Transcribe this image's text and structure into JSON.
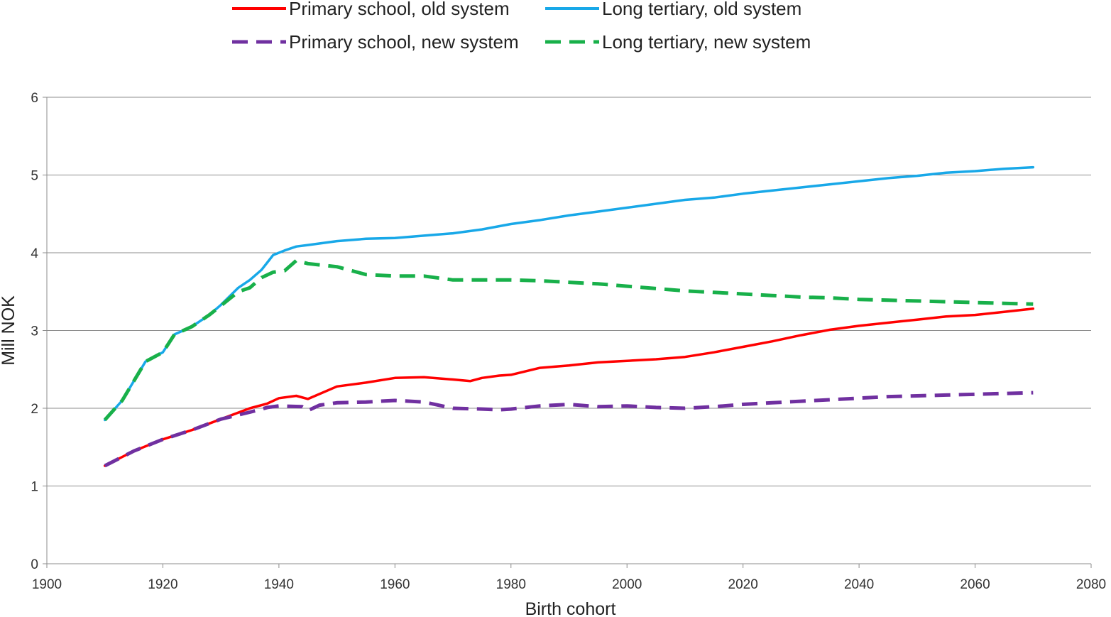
{
  "chart_data": {
    "type": "line",
    "title": "",
    "xlabel": "Birth cohort",
    "ylabel": "Mill NOK",
    "xlim": [
      1900,
      2080
    ],
    "ylim": [
      0,
      6
    ],
    "x_ticks": [
      "1900",
      "1920",
      "1940",
      "1960",
      "1980",
      "2000",
      "2020",
      "2040",
      "2060",
      "2080"
    ],
    "y_ticks": [
      "0",
      "1",
      "2",
      "3",
      "4",
      "5",
      "6"
    ],
    "grid": "horizontal",
    "legend_position": "top",
    "series": [
      {
        "name": "Primary school, old system",
        "color": "#ff0000",
        "dash": "solid",
        "points": [
          [
            1910,
            1.26
          ],
          [
            1915,
            1.45
          ],
          [
            1920,
            1.6
          ],
          [
            1925,
            1.72
          ],
          [
            1930,
            1.86
          ],
          [
            1935,
            2.0
          ],
          [
            1938,
            2.06
          ],
          [
            1940,
            2.13
          ],
          [
            1943,
            2.16
          ],
          [
            1945,
            2.12
          ],
          [
            1950,
            2.28
          ],
          [
            1955,
            2.33
          ],
          [
            1960,
            2.39
          ],
          [
            1965,
            2.4
          ],
          [
            1970,
            2.37
          ],
          [
            1973,
            2.35
          ],
          [
            1975,
            2.39
          ],
          [
            1978,
            2.42
          ],
          [
            1980,
            2.43
          ],
          [
            1985,
            2.52
          ],
          [
            1990,
            2.55
          ],
          [
            1995,
            2.59
          ],
          [
            2000,
            2.61
          ],
          [
            2005,
            2.63
          ],
          [
            2010,
            2.66
          ],
          [
            2015,
            2.72
          ],
          [
            2020,
            2.79
          ],
          [
            2025,
            2.86
          ],
          [
            2030,
            2.94
          ],
          [
            2035,
            3.01
          ],
          [
            2040,
            3.06
          ],
          [
            2045,
            3.1
          ],
          [
            2050,
            3.14
          ],
          [
            2055,
            3.18
          ],
          [
            2060,
            3.2
          ],
          [
            2065,
            3.24
          ],
          [
            2070,
            3.28
          ]
        ]
      },
      {
        "name": "Long tertiary, old system",
        "color": "#18a8e8",
        "dash": "solid",
        "points": [
          [
            1910,
            1.85
          ],
          [
            1913,
            2.1
          ],
          [
            1917,
            2.6
          ],
          [
            1920,
            2.72
          ],
          [
            1922,
            2.95
          ],
          [
            1925,
            3.05
          ],
          [
            1928,
            3.2
          ],
          [
            1930,
            3.33
          ],
          [
            1933,
            3.55
          ],
          [
            1935,
            3.65
          ],
          [
            1937,
            3.78
          ],
          [
            1939,
            3.97
          ],
          [
            1941,
            4.03
          ],
          [
            1943,
            4.08
          ],
          [
            1945,
            4.1
          ],
          [
            1950,
            4.15
          ],
          [
            1955,
            4.18
          ],
          [
            1960,
            4.19
          ],
          [
            1965,
            4.22
          ],
          [
            1970,
            4.25
          ],
          [
            1975,
            4.3
          ],
          [
            1980,
            4.37
          ],
          [
            1985,
            4.42
          ],
          [
            1990,
            4.48
          ],
          [
            1995,
            4.53
          ],
          [
            2000,
            4.58
          ],
          [
            2005,
            4.63
          ],
          [
            2010,
            4.68
          ],
          [
            2015,
            4.71
          ],
          [
            2020,
            4.76
          ],
          [
            2025,
            4.8
          ],
          [
            2030,
            4.84
          ],
          [
            2035,
            4.88
          ],
          [
            2040,
            4.92
          ],
          [
            2045,
            4.96
          ],
          [
            2050,
            4.99
          ],
          [
            2055,
            5.03
          ],
          [
            2060,
            5.05
          ],
          [
            2065,
            5.08
          ],
          [
            2070,
            5.1
          ]
        ]
      },
      {
        "name": "Primary school, new system",
        "color": "#7030a0",
        "dash": "dashed",
        "points": [
          [
            1910,
            1.26
          ],
          [
            1915,
            1.45
          ],
          [
            1920,
            1.6
          ],
          [
            1925,
            1.72
          ],
          [
            1930,
            1.86
          ],
          [
            1935,
            1.95
          ],
          [
            1938,
            2.01
          ],
          [
            1940,
            2.03
          ],
          [
            1944,
            2.02
          ],
          [
            1945,
            1.97
          ],
          [
            1947,
            2.04
          ],
          [
            1950,
            2.07
          ],
          [
            1955,
            2.08
          ],
          [
            1960,
            2.1
          ],
          [
            1965,
            2.08
          ],
          [
            1970,
            2.0
          ],
          [
            1975,
            1.99
          ],
          [
            1978,
            1.98
          ],
          [
            1980,
            1.99
          ],
          [
            1985,
            2.03
          ],
          [
            1990,
            2.05
          ],
          [
            1995,
            2.02
          ],
          [
            2000,
            2.03
          ],
          [
            2005,
            2.01
          ],
          [
            2010,
            2.0
          ],
          [
            2015,
            2.02
          ],
          [
            2020,
            2.05
          ],
          [
            2025,
            2.07
          ],
          [
            2030,
            2.09
          ],
          [
            2035,
            2.11
          ],
          [
            2040,
            2.13
          ],
          [
            2045,
            2.15
          ],
          [
            2050,
            2.16
          ],
          [
            2055,
            2.17
          ],
          [
            2060,
            2.18
          ],
          [
            2065,
            2.19
          ],
          [
            2070,
            2.2
          ]
        ]
      },
      {
        "name": "Long tertiary, new system",
        "color": "#18b04a",
        "dash": "dashed",
        "points": [
          [
            1910,
            1.85
          ],
          [
            1913,
            2.1
          ],
          [
            1917,
            2.6
          ],
          [
            1920,
            2.72
          ],
          [
            1922,
            2.95
          ],
          [
            1925,
            3.05
          ],
          [
            1928,
            3.2
          ],
          [
            1930,
            3.32
          ],
          [
            1933,
            3.5
          ],
          [
            1935,
            3.55
          ],
          [
            1937,
            3.68
          ],
          [
            1939,
            3.75
          ],
          [
            1941,
            3.77
          ],
          [
            1943,
            3.9
          ],
          [
            1945,
            3.86
          ],
          [
            1950,
            3.82
          ],
          [
            1955,
            3.72
          ],
          [
            1960,
            3.7
          ],
          [
            1965,
            3.7
          ],
          [
            1970,
            3.65
          ],
          [
            1975,
            3.65
          ],
          [
            1980,
            3.65
          ],
          [
            1985,
            3.64
          ],
          [
            1990,
            3.62
          ],
          [
            1995,
            3.6
          ],
          [
            2000,
            3.57
          ],
          [
            2005,
            3.54
          ],
          [
            2010,
            3.51
          ],
          [
            2015,
            3.49
          ],
          [
            2020,
            3.47
          ],
          [
            2025,
            3.45
          ],
          [
            2030,
            3.43
          ],
          [
            2035,
            3.42
          ],
          [
            2040,
            3.4
          ],
          [
            2045,
            3.39
          ],
          [
            2050,
            3.38
          ],
          [
            2055,
            3.37
          ],
          [
            2060,
            3.36
          ],
          [
            2065,
            3.35
          ],
          [
            2070,
            3.34
          ]
        ]
      }
    ]
  }
}
